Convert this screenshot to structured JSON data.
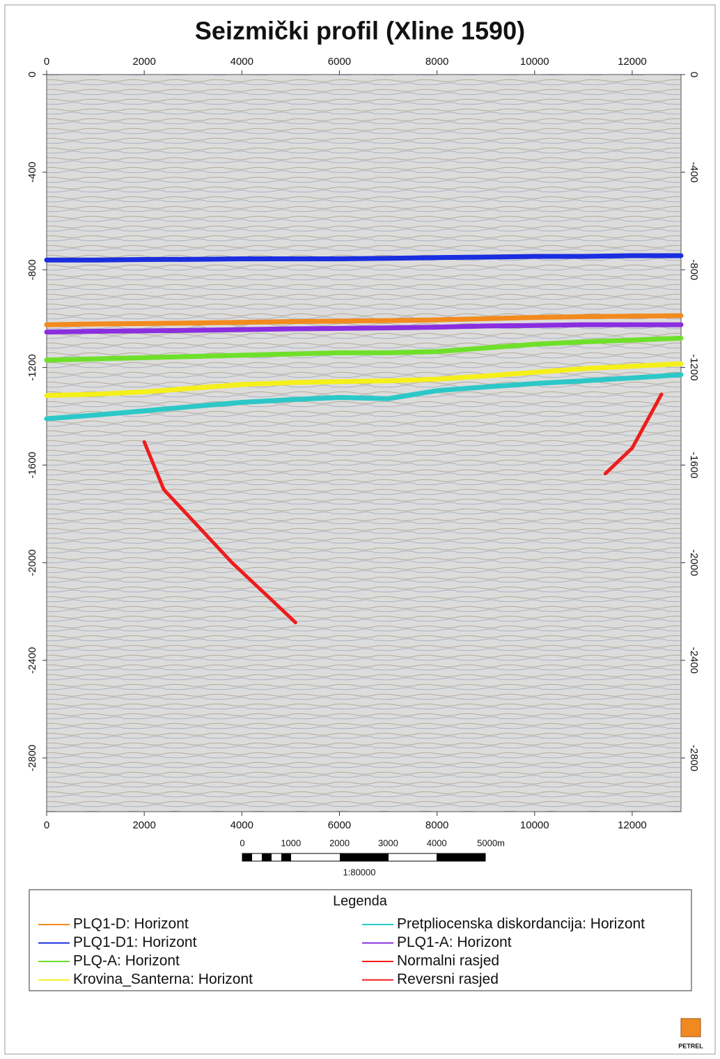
{
  "chart_data": {
    "type": "line",
    "title": "Seizmički profil (Xline 1590)",
    "xlim": [
      0,
      13000
    ],
    "ylim": [
      -3020,
      0
    ],
    "xticks": [
      0,
      2000,
      4000,
      6000,
      8000,
      10000,
      12000
    ],
    "yticks": [
      0,
      -400,
      -800,
      -1200,
      -1600,
      -2000,
      -2400,
      -2800
    ],
    "x": [
      0,
      1000,
      2000,
      3000,
      4000,
      5000,
      6000,
      7000,
      8000,
      9000,
      10000,
      11000,
      12000,
      13000
    ],
    "legend_title": "Legenda",
    "series": [
      {
        "name": "PLQ1-D: Horizont",
        "color": "#f28a1e",
        "values": [
          -1025,
          -1022,
          -1020,
          -1018,
          -1015,
          -1012,
          -1010,
          -1008,
          -1005,
          -1000,
          -995,
          -992,
          -990,
          -988
        ]
      },
      {
        "name": "PLQ1-D1: Horizont",
        "color": "#1a2ee0",
        "values": [
          -760,
          -760,
          -758,
          -757,
          -755,
          -755,
          -755,
          -753,
          -750,
          -748,
          -745,
          -745,
          -742,
          -742
        ]
      },
      {
        "name": "PLQ-A: Horizont",
        "color": "#6fe02a",
        "values": [
          -1170,
          -1165,
          -1160,
          -1155,
          -1150,
          -1145,
          -1140,
          -1140,
          -1135,
          -1120,
          -1105,
          -1095,
          -1088,
          -1080
        ]
      },
      {
        "name": "Krovina_Santerna: Horizont",
        "color": "#f5f01a",
        "values": [
          -1315,
          -1310,
          -1300,
          -1285,
          -1270,
          -1262,
          -1258,
          -1255,
          -1248,
          -1235,
          -1220,
          -1205,
          -1195,
          -1185
        ]
      },
      {
        "name": "Pretpliocenska diskordancija: Horizont",
        "color": "#2cc8c8",
        "values": [
          -1410,
          -1395,
          -1378,
          -1360,
          -1343,
          -1332,
          -1323,
          -1328,
          -1295,
          -1280,
          -1266,
          -1255,
          -1243,
          -1230
        ]
      },
      {
        "name": "PLQ1-A: Horizont",
        "color": "#8a2ee0",
        "values": [
          -1055,
          -1052,
          -1050,
          -1048,
          -1045,
          -1042,
          -1040,
          -1038,
          -1035,
          -1030,
          -1028,
          -1025,
          -1025,
          -1025
        ]
      },
      {
        "name": "Normalni rasjed",
        "color": "#ee1c1c",
        "x": [
          2000,
          2400,
          3800,
          5100
        ],
        "values": [
          -1505,
          -1700,
          -2000,
          -2245
        ]
      },
      {
        "name": "Reversni rasjed",
        "color": "#ee1c1c",
        "x": [
          11450,
          12000,
          12600
        ],
        "values": [
          -1635,
          -1530,
          -1310
        ]
      }
    ],
    "scale_bar": {
      "labels": [
        "0",
        "1000",
        "2000",
        "3000",
        "4000",
        "5000m"
      ],
      "ratio": "1:80000"
    },
    "logo": "PETREL"
  }
}
